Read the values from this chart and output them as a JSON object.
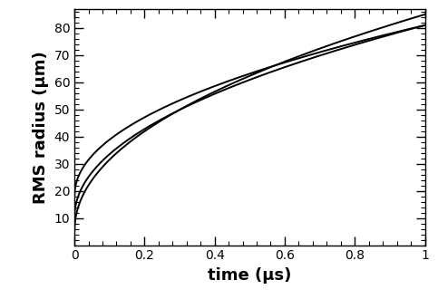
{
  "title": "",
  "xlabel": "time (μs)",
  "ylabel": "RMS radius (μm)",
  "xlim": [
    0,
    1.0
  ],
  "ylim": [
    0,
    87
  ],
  "xticks": [
    0,
    0.2,
    0.4,
    0.6,
    0.8,
    1.0
  ],
  "yticks": [
    10,
    20,
    30,
    40,
    50,
    60,
    70,
    80
  ],
  "curves": [
    {
      "y0": 5.0,
      "scale": 80.0,
      "power": 0.48,
      "color": "#000000",
      "lw": 1.4
    },
    {
      "y0": 10.0,
      "scale": 71.0,
      "power": 0.48,
      "color": "#000000",
      "lw": 1.4
    },
    {
      "y0": 18.0,
      "scale": 63.0,
      "power": 0.48,
      "color": "#000000",
      "lw": 1.4
    }
  ],
  "background_color": "#ffffff",
  "xlabel_fontsize": 13,
  "ylabel_fontsize": 13,
  "tick_labelsize": 10,
  "xlabel_fontweight": "bold",
  "ylabel_fontweight": "bold"
}
